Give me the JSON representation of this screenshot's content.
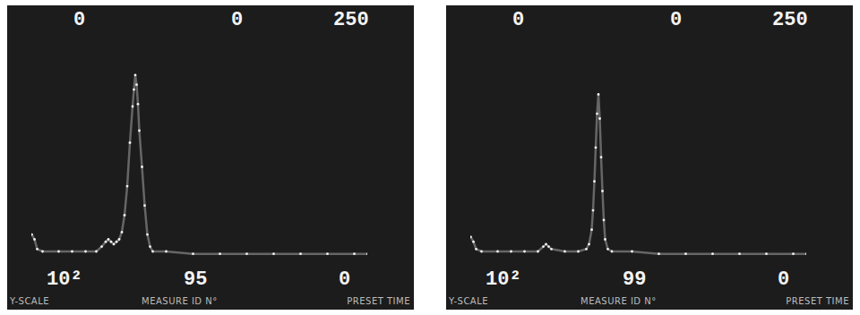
{
  "chart_data": [
    {
      "type": "scatter",
      "marker": "dot",
      "color": "#f2f2f2",
      "tick_labels": false,
      "xlim": [
        0,
        250
      ],
      "ylim": [
        0,
        100
      ],
      "readouts": {
        "top": [
          "0",
          "0",
          "250"
        ],
        "bottom": [
          "10²",
          "95",
          "0"
        ]
      },
      "field_labels": [
        "Y-SCALE",
        "MEASURE ID N°",
        "PRESET TIME"
      ],
      "x": [
        0,
        2,
        4,
        8,
        20,
        30,
        40,
        48,
        52,
        55,
        57,
        59,
        61,
        63,
        65,
        67,
        69,
        71,
        73,
        75,
        76,
        77,
        78,
        79,
        80,
        82,
        84,
        86,
        88,
        90,
        100,
        120,
        140,
        160,
        180,
        200,
        220,
        240,
        250
      ],
      "values": [
        12,
        10,
        6,
        5,
        5,
        5,
        5,
        5,
        7,
        9,
        10,
        9,
        8,
        9,
        10,
        13,
        20,
        32,
        50,
        65,
        72,
        78,
        74,
        66,
        55,
        40,
        24,
        12,
        7,
        5,
        5,
        4,
        4,
        4,
        4,
        4,
        4,
        4,
        4
      ]
    },
    {
      "type": "scatter",
      "marker": "dot",
      "color": "#f2f2f2",
      "tick_labels": false,
      "xlim": [
        0,
        250
      ],
      "ylim": [
        0,
        100
      ],
      "readouts": {
        "top": [
          "0",
          "0",
          "250"
        ],
        "bottom": [
          "10²",
          "99",
          "0"
        ]
      },
      "field_labels": [
        "Y-SCALE",
        "MEASURE ID N°",
        "PRESET TIME"
      ],
      "x": [
        0,
        2,
        4,
        8,
        20,
        30,
        40,
        50,
        54,
        56,
        58,
        60,
        70,
        80,
        86,
        88,
        90,
        91,
        92,
        93,
        94,
        95,
        96,
        97,
        98,
        99,
        100,
        102,
        105,
        120,
        140,
        160,
        180,
        200,
        220,
        240,
        250
      ],
      "values": [
        11,
        9,
        6,
        5,
        5,
        5,
        5,
        5,
        7,
        8,
        7,
        6,
        5,
        5,
        6,
        8,
        14,
        22,
        34,
        48,
        62,
        70,
        60,
        44,
        30,
        18,
        10,
        6,
        5,
        5,
        4,
        4,
        4,
        4,
        4,
        4,
        4
      ]
    }
  ]
}
